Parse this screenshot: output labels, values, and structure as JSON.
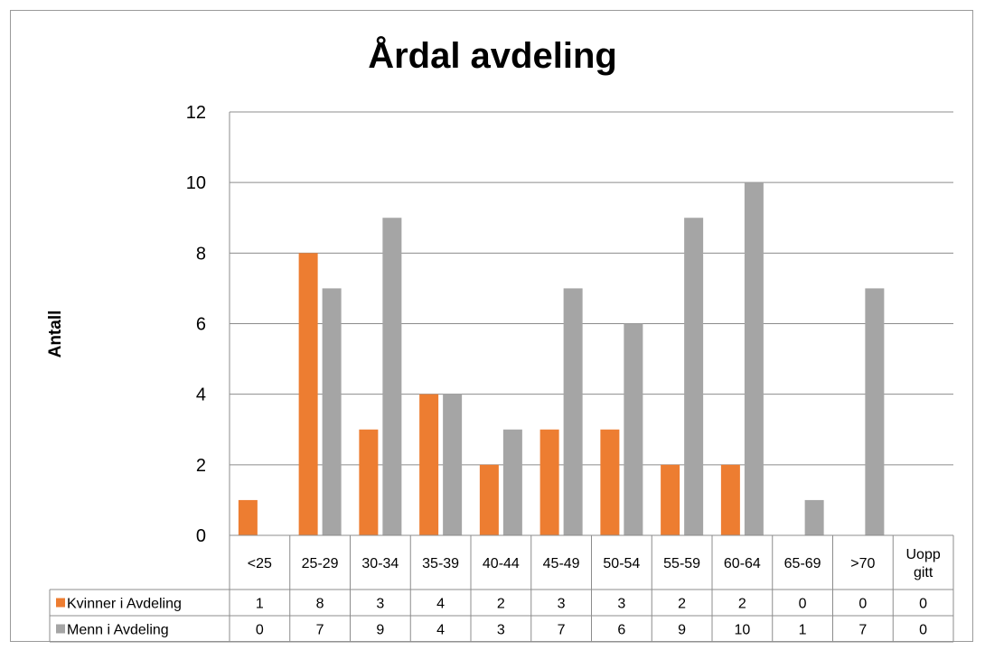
{
  "chart_data": {
    "type": "bar",
    "title": "Årdal avdeling",
    "xlabel": "",
    "ylabel": "Antall",
    "ylim": [
      0,
      12
    ],
    "yticks": [
      0,
      2,
      4,
      6,
      8,
      10,
      12
    ],
    "grid": true,
    "legend": "data-table",
    "categories": [
      "<25",
      "25-29",
      "30-34",
      "35-39",
      "40-44",
      "45-49",
      "50-54",
      "55-59",
      "60-64",
      "65-69",
      ">70",
      "Uopp gitt"
    ],
    "series": [
      {
        "name": "Kvinner i Avdeling",
        "color": "#ed7d31",
        "values": [
          1,
          8,
          3,
          4,
          2,
          3,
          3,
          2,
          2,
          0,
          0,
          0
        ]
      },
      {
        "name": "Menn i Avdeling",
        "color": "#a5a5a5",
        "values": [
          0,
          7,
          9,
          4,
          3,
          7,
          6,
          9,
          10,
          1,
          7,
          0
        ]
      }
    ]
  }
}
